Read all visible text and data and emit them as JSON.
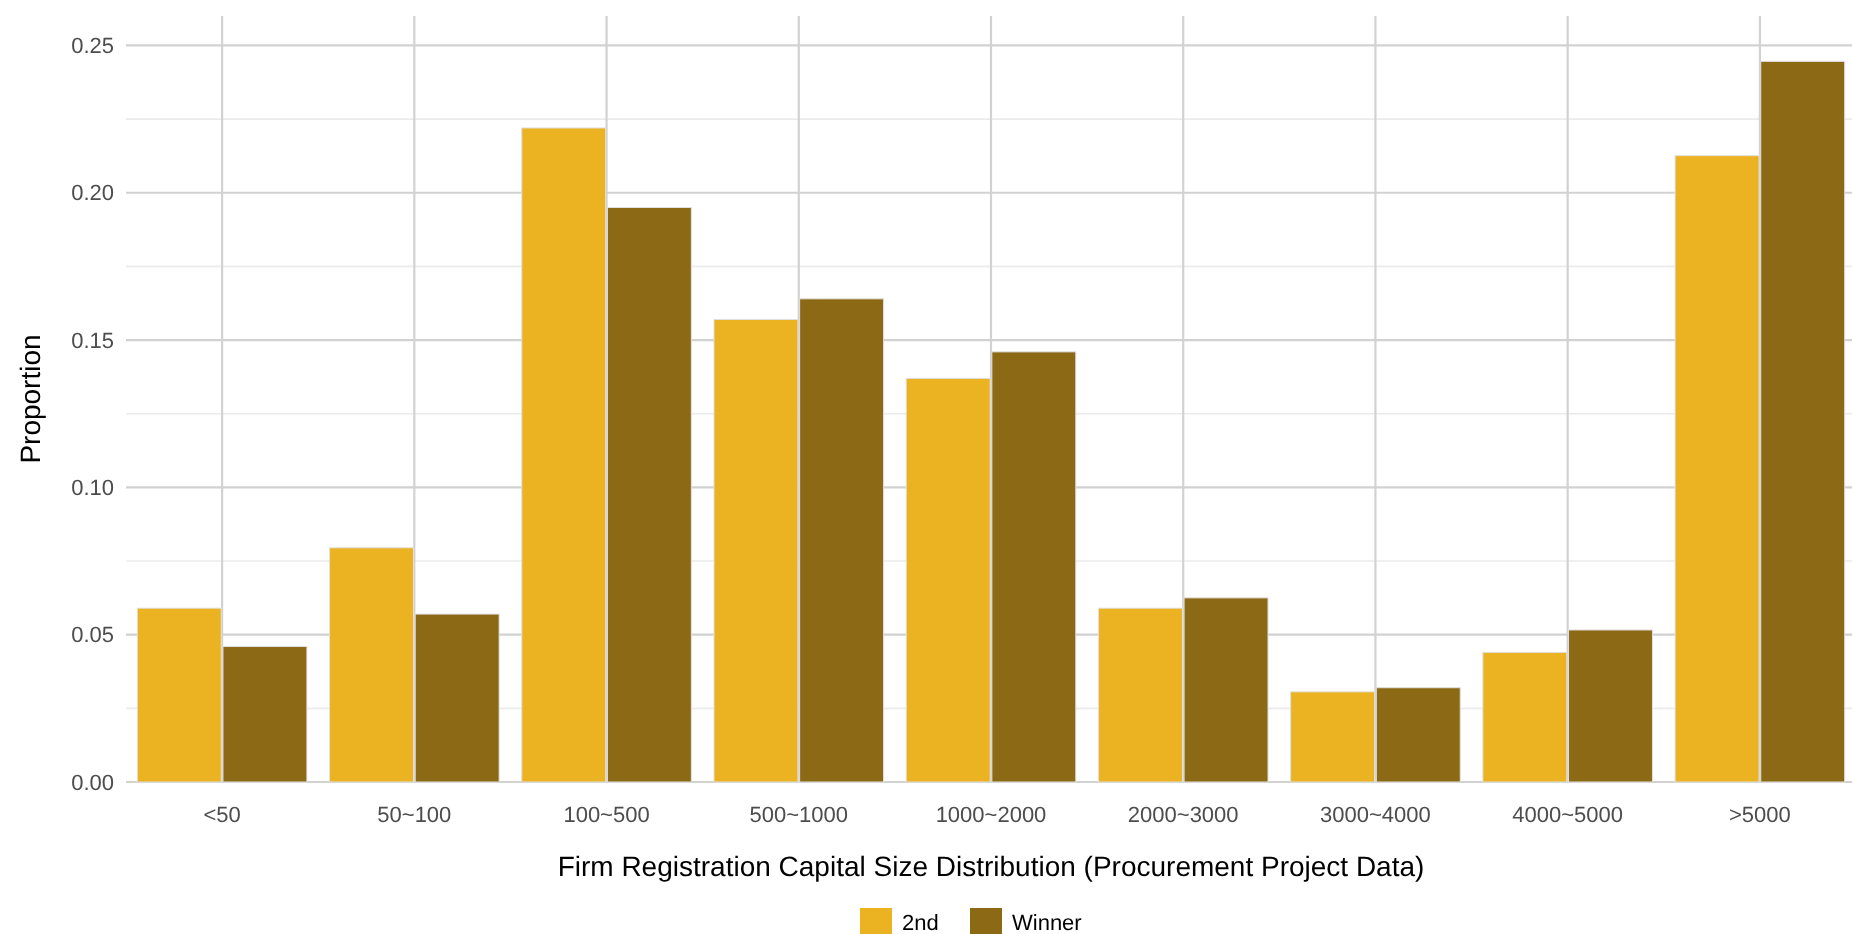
{
  "chart_data": {
    "type": "bar",
    "xlabel": "Firm Registration Capital Size Distribution (Procurement Project Data)",
    "ylabel": "Proportion",
    "categories": [
      "<50",
      "50~100",
      "100~500",
      "500~1000",
      "1000~2000",
      "2000~3000",
      "3000~4000",
      "4000~5000",
      ">5000"
    ],
    "series": [
      {
        "name": "2nd",
        "color": "#ebb221",
        "values": [
          0.059,
          0.0795,
          0.222,
          0.157,
          0.137,
          0.059,
          0.0306,
          0.044,
          0.2126
        ]
      },
      {
        "name": "Winner",
        "color": "#8c6914",
        "values": [
          0.046,
          0.057,
          0.195,
          0.164,
          0.146,
          0.0625,
          0.032,
          0.0516,
          0.2446
        ]
      }
    ],
    "ylim": [
      0,
      0.26
    ],
    "yticks": [
      {
        "value": 0,
        "label": "0.00"
      },
      {
        "value": 0.025,
        "label": null
      },
      {
        "value": 0.05,
        "label": "0.05"
      },
      {
        "value": 0.075,
        "label": null
      },
      {
        "value": 0.1,
        "label": "0.10"
      },
      {
        "value": 0.125,
        "label": null
      },
      {
        "value": 0.15,
        "label": "0.15"
      },
      {
        "value": 0.175,
        "label": null
      },
      {
        "value": 0.2,
        "label": "0.20"
      },
      {
        "value": 0.225,
        "label": null
      },
      {
        "value": 0.25,
        "label": "0.25"
      }
    ],
    "grid": true,
    "legend": "bottom"
  }
}
